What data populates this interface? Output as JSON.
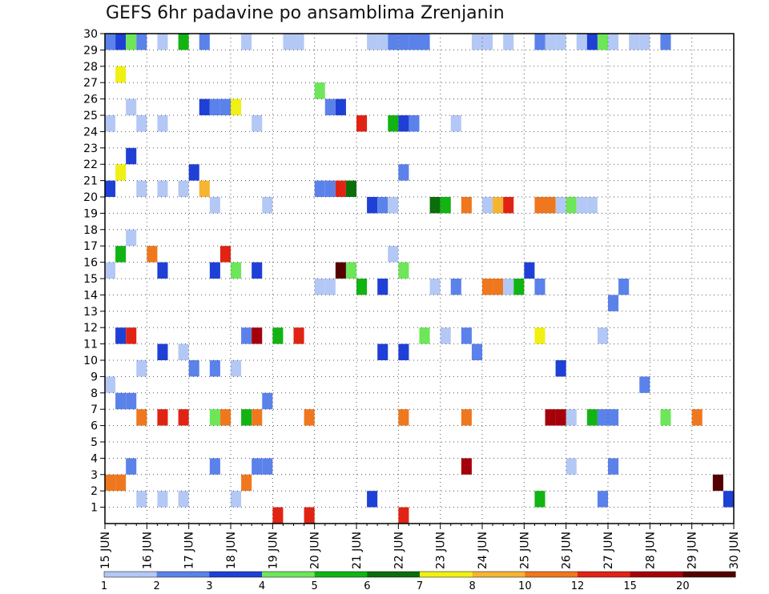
{
  "chart_data": {
    "type": "heatmap",
    "title": "GEFS 6hr padavine po ansamblima Zrenjanin",
    "xlabel": "",
    "ylabel": "",
    "x_ticks": [
      "15 JUN",
      "16 JUN",
      "17 JUN",
      "18 JUN",
      "19 JUN",
      "20 JUN",
      "21 JUN",
      "22 JUN",
      "23 JUN",
      "24 JUN",
      "25 JUN",
      "26 JUN",
      "27 JUN",
      "28 JUN",
      "29 JUN",
      "30 JUN"
    ],
    "xlim": [
      0,
      60
    ],
    "y_ticks": [
      1,
      2,
      3,
      4,
      5,
      6,
      7,
      8,
      9,
      10,
      11,
      12,
      13,
      14,
      15,
      16,
      17,
      18,
      19,
      20,
      21,
      22,
      23,
      24,
      25,
      26,
      27,
      28,
      29,
      30
    ],
    "ylim": [
      0,
      30
    ],
    "grid": true,
    "colorbar": {
      "placement": "bottom",
      "labels": [
        "1",
        "2",
        "3",
        "4",
        "5",
        "6",
        "7",
        "8",
        "10",
        "12",
        "15",
        "20"
      ],
      "colors": [
        "#b4c8f5",
        "#5b82ea",
        "#1f40d6",
        "#6ee65a",
        "#12b414",
        "#0a6e0a",
        "#f0f014",
        "#f5b432",
        "#ef781e",
        "#e12314",
        "#a5000a",
        "#550000"
      ]
    },
    "cells": [
      [
        0,
        2,
        8
      ],
      [
        1,
        2,
        8
      ],
      [
        2,
        3,
        1
      ],
      [
        3,
        1,
        0
      ],
      [
        5,
        1,
        0
      ],
      [
        7,
        1,
        0
      ],
      [
        10,
        3,
        1
      ],
      [
        12,
        1,
        0
      ],
      [
        13,
        2,
        8
      ],
      [
        14,
        3,
        1
      ],
      [
        15,
        3,
        1
      ],
      [
        16,
        0,
        9
      ],
      [
        19,
        0,
        9
      ],
      [
        25,
        1,
        2
      ],
      [
        28,
        0,
        9
      ],
      [
        34,
        3,
        10
      ],
      [
        41,
        1,
        4
      ],
      [
        44,
        3,
        0
      ],
      [
        47,
        1,
        1
      ],
      [
        48,
        3,
        1
      ],
      [
        58,
        2,
        11
      ],
      [
        59,
        1,
        2
      ],
      [
        0,
        4,
        0
      ],
      [
        1,
        3,
        1
      ],
      [
        2,
        3,
        1
      ],
      [
        3,
        2,
        8
      ],
      [
        5,
        2,
        9
      ],
      [
        7,
        2,
        9
      ],
      [
        10,
        2,
        3
      ],
      [
        11,
        2,
        8
      ],
      [
        13,
        2,
        4
      ],
      [
        14,
        2,
        8
      ],
      [
        15,
        3,
        1
      ],
      [
        19,
        2,
        8
      ],
      [
        28,
        2,
        8
      ],
      [
        34,
        2,
        8
      ],
      [
        42,
        2,
        10
      ],
      [
        43,
        2,
        10
      ],
      [
        44,
        2,
        0
      ],
      [
        46,
        2,
        4
      ],
      [
        47,
        2,
        1
      ],
      [
        48,
        2,
        1
      ],
      [
        51,
        4,
        1
      ],
      [
        53,
        2,
        3
      ],
      [
        56,
        2,
        8
      ],
      [
        1,
        2,
        2
      ],
      [
        2,
        2,
        9
      ],
      [
        3,
        0,
        0
      ],
      [
        5,
        1,
        2
      ],
      [
        7,
        1,
        0
      ],
      [
        8,
        0,
        1
      ],
      [
        10,
        0,
        1
      ],
      [
        12,
        0,
        0
      ],
      [
        13,
        2,
        1
      ],
      [
        14,
        2,
        10
      ],
      [
        16,
        2,
        4
      ],
      [
        18,
        2,
        9
      ],
      [
        26,
        1,
        2
      ],
      [
        28,
        1,
        2
      ],
      [
        30,
        2,
        3
      ],
      [
        32,
        2,
        0
      ],
      [
        34,
        2,
        1
      ],
      [
        35,
        1,
        1
      ],
      [
        41,
        2,
        6
      ],
      [
        43,
        0,
        2
      ],
      [
        47,
        2,
        0
      ],
      [
        48,
        4,
        1
      ],
      [
        0,
        1,
        0
      ],
      [
        1,
        2,
        4
      ],
      [
        2,
        3,
        0
      ],
      [
        4,
        2,
        8
      ],
      [
        5,
        1,
        2
      ],
      [
        10,
        1,
        2
      ],
      [
        11,
        2,
        9
      ],
      [
        12,
        1,
        3
      ],
      [
        14,
        1,
        2
      ],
      [
        20,
        0,
        0
      ],
      [
        21,
        0,
        0
      ],
      [
        22,
        1,
        11
      ],
      [
        23,
        1,
        3
      ],
      [
        24,
        0,
        4
      ],
      [
        26,
        0,
        2
      ],
      [
        27,
        2,
        0
      ],
      [
        28,
        1,
        3
      ],
      [
        31,
        0,
        0
      ],
      [
        33,
        0,
        1
      ],
      [
        36,
        0,
        8
      ],
      [
        37,
        0,
        8
      ],
      [
        38,
        0,
        0
      ],
      [
        39,
        0,
        4
      ],
      [
        40,
        1,
        2
      ],
      [
        41,
        0,
        1
      ],
      [
        49,
        0,
        1
      ],
      [
        0,
        1,
        2
      ],
      [
        1,
        2,
        6
      ],
      [
        2,
        3,
        2
      ],
      [
        3,
        1,
        0
      ],
      [
        5,
        1,
        0
      ],
      [
        7,
        1,
        0
      ],
      [
        8,
        2,
        2
      ],
      [
        9,
        1,
        7
      ],
      [
        10,
        0,
        0
      ],
      [
        15,
        0,
        0
      ],
      [
        20,
        1,
        1
      ],
      [
        21,
        1,
        1
      ],
      [
        22,
        1,
        9
      ],
      [
        23,
        1,
        5
      ],
      [
        25,
        0,
        2
      ],
      [
        26,
        0,
        1
      ],
      [
        27,
        0,
        0
      ],
      [
        28,
        2,
        1
      ],
      [
        31,
        0,
        5
      ],
      [
        32,
        0,
        4
      ],
      [
        34,
        0,
        8
      ],
      [
        36,
        0,
        0
      ],
      [
        37,
        0,
        7
      ],
      [
        38,
        0,
        9
      ],
      [
        41,
        0,
        8
      ],
      [
        42,
        0,
        8
      ],
      [
        43,
        0,
        0
      ],
      [
        44,
        0,
        3
      ],
      [
        45,
        0,
        0
      ],
      [
        46,
        0,
        0
      ],
      [
        0,
        0,
        0
      ],
      [
        1,
        3,
        6
      ],
      [
        2,
        1,
        0
      ],
      [
        3,
        0,
        0
      ],
      [
        5,
        0,
        0
      ],
      [
        9,
        1,
        2
      ],
      [
        10,
        1,
        1
      ],
      [
        11,
        1,
        1
      ],
      [
        12,
        1,
        6
      ],
      [
        14,
        0,
        0
      ],
      [
        20,
        2,
        3
      ],
      [
        21,
        1,
        1
      ],
      [
        22,
        1,
        2
      ],
      [
        24,
        0,
        9
      ],
      [
        27,
        0,
        4
      ],
      [
        28,
        0,
        2
      ],
      [
        29,
        0,
        1
      ],
      [
        33,
        0,
        0
      ],
      [
        0,
        0,
        1
      ],
      [
        1,
        0,
        2
      ],
      [
        2,
        0,
        3
      ],
      [
        3,
        0,
        1
      ],
      [
        5,
        0,
        0
      ],
      [
        7,
        0,
        4
      ],
      [
        9,
        0,
        1
      ],
      [
        10,
        2,
        2
      ],
      [
        11,
        1,
        3
      ],
      [
        12,
        1,
        0
      ],
      [
        13,
        0,
        0
      ],
      [
        17,
        0,
        0
      ],
      [
        18,
        0,
        0
      ],
      [
        25,
        0,
        0
      ],
      [
        26,
        0,
        0
      ],
      [
        27,
        0,
        1
      ],
      [
        28,
        0,
        1
      ],
      [
        29,
        0,
        1
      ],
      [
        30,
        0,
        1
      ],
      [
        35,
        0,
        0
      ],
      [
        36,
        0,
        0
      ],
      [
        38,
        0,
        0
      ],
      [
        41,
        0,
        1
      ],
      [
        42,
        0,
        0
      ],
      [
        43,
        0,
        0
      ],
      [
        45,
        0,
        0
      ],
      [
        46,
        0,
        2
      ],
      [
        47,
        0,
        3
      ],
      [
        48,
        0,
        0
      ],
      [
        50,
        0,
        0
      ],
      [
        51,
        0,
        0
      ],
      [
        53,
        0,
        1
      ]
    ],
    "cell_colors": [
      [
        "#b4c8f5",
        "#5b82ea",
        "#1f40d6",
        "#6ee65a",
        "#12b414",
        "#0a6e0a",
        "#f0f014",
        "#f5b432",
        "#ef781e",
        "#e12314",
        "#a5000a",
        "#550000"
      ]
    ]
  }
}
